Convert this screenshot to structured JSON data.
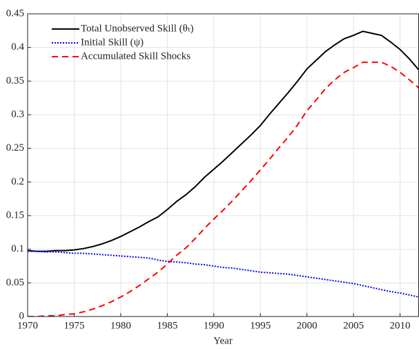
{
  "chart_data": {
    "type": "line",
    "x_label": "Year",
    "x": [
      1970,
      1971,
      1972,
      1973,
      1974,
      1975,
      1976,
      1977,
      1978,
      1979,
      1980,
      1981,
      1982,
      1983,
      1984,
      1985,
      1986,
      1987,
      1988,
      1989,
      1990,
      1991,
      1992,
      1993,
      1994,
      1995,
      1996,
      1997,
      1998,
      1999,
      2000,
      2001,
      2002,
      2003,
      2004,
      2005,
      2006,
      2007,
      2008,
      2009,
      2010,
      2011,
      2012
    ],
    "series": [
      {
        "name": "Total Unobserved Skill (θₜ)",
        "color": "#000000",
        "dash": "solid",
        "values": [
          0.098,
          0.097,
          0.097,
          0.098,
          0.098,
          0.099,
          0.101,
          0.104,
          0.108,
          0.113,
          0.119,
          0.126,
          0.133,
          0.141,
          0.148,
          0.159,
          0.171,
          0.181,
          0.193,
          0.207,
          0.219,
          0.231,
          0.244,
          0.257,
          0.27,
          0.284,
          0.301,
          0.317,
          0.333,
          0.35,
          0.368,
          0.381,
          0.394,
          0.404,
          0.413,
          0.418,
          0.424,
          0.421,
          0.418,
          0.408,
          0.397,
          0.383,
          0.367
        ]
      },
      {
        "name": "Initial Skill (ψ)",
        "color": "#0000ff",
        "dash": "dotted",
        "values": [
          0.097,
          0.097,
          0.096,
          0.096,
          0.095,
          0.094,
          0.094,
          0.093,
          0.092,
          0.091,
          0.09,
          0.089,
          0.088,
          0.087,
          0.084,
          0.082,
          0.081,
          0.08,
          0.078,
          0.077,
          0.075,
          0.073,
          0.072,
          0.07,
          0.068,
          0.066,
          0.065,
          0.064,
          0.063,
          0.061,
          0.059,
          0.057,
          0.055,
          0.053,
          0.051,
          0.049,
          0.046,
          0.043,
          0.04,
          0.037,
          0.035,
          0.032,
          0.029
        ]
      },
      {
        "name": "Accumulated Skill Shocks",
        "color": "#ff0000",
        "dash": "dashed",
        "values": [
          0.0,
          0.0,
          0.001,
          0.001,
          0.003,
          0.004,
          0.007,
          0.011,
          0.016,
          0.022,
          0.029,
          0.037,
          0.046,
          0.056,
          0.066,
          0.078,
          0.091,
          0.102,
          0.116,
          0.131,
          0.145,
          0.158,
          0.172,
          0.187,
          0.202,
          0.218,
          0.234,
          0.251,
          0.267,
          0.285,
          0.306,
          0.322,
          0.339,
          0.352,
          0.363,
          0.37,
          0.378,
          0.378,
          0.378,
          0.372,
          0.363,
          0.352,
          0.34
        ]
      }
    ],
    "xlim": [
      1970,
      2012
    ],
    "xticks": [
      1970,
      1975,
      1980,
      1985,
      1990,
      1995,
      2000,
      2005,
      2010
    ],
    "ylim": [
      0,
      0.45
    ],
    "yticks": [
      0,
      0.05,
      0.1,
      0.15,
      0.2,
      0.25,
      0.3,
      0.35,
      0.4,
      0.45
    ],
    "grid": true,
    "legend": "upper-left"
  }
}
